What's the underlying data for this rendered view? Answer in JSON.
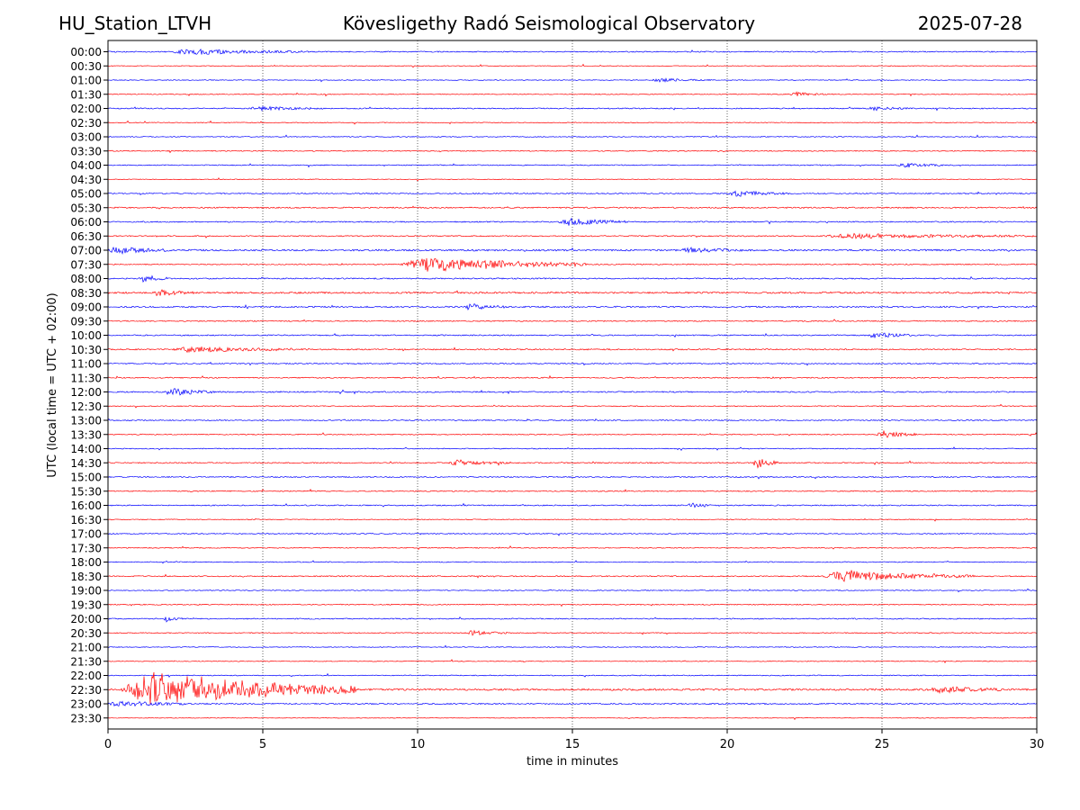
{
  "header": {
    "station": "HU_Station_LTVH",
    "observatory": "Kövesligethy Radó Seismological Observatory",
    "date": "2025-07-28"
  },
  "chart_data": {
    "type": "line",
    "xlabel": "time in minutes",
    "ylabel": "UTC (local time = UTC + 02:00)",
    "xlim": [
      0,
      30
    ],
    "x_ticks": [
      0,
      5,
      10,
      15,
      20,
      25,
      30
    ],
    "x_grid": "dotted vertical lines at 5, 10, 15, 20, 25",
    "trace_colors": [
      "#0000ff",
      "#ff0000"
    ],
    "rows": [
      "00:00",
      "00:30",
      "01:00",
      "01:30",
      "02:00",
      "02:30",
      "03:00",
      "03:30",
      "04:00",
      "04:30",
      "05:00",
      "05:30",
      "06:00",
      "06:30",
      "07:00",
      "07:30",
      "08:00",
      "08:30",
      "09:00",
      "09:30",
      "10:00",
      "10:30",
      "11:00",
      "11:30",
      "12:00",
      "12:30",
      "13:00",
      "13:30",
      "14:00",
      "14:30",
      "15:00",
      "15:30",
      "16:00",
      "16:30",
      "17:00",
      "17:30",
      "18:00",
      "18:30",
      "19:00",
      "19:30",
      "20:00",
      "20:30",
      "21:00",
      "21:30",
      "22:00",
      "22:30",
      "23:00",
      "23:30"
    ],
    "row_noise": [
      0.6,
      0.35,
      0.4,
      0.45,
      0.6,
      0.4,
      0.45,
      0.5,
      0.55,
      0.35,
      0.6,
      0.7,
      0.65,
      0.6,
      0.9,
      0.6,
      0.7,
      0.9,
      0.8,
      0.6,
      0.65,
      0.7,
      0.6,
      0.6,
      0.7,
      0.5,
      0.6,
      0.55,
      0.5,
      0.6,
      0.6,
      0.55,
      0.6,
      0.45,
      0.55,
      0.5,
      0.5,
      0.6,
      0.45,
      0.55,
      0.6,
      0.5,
      0.4,
      0.4,
      0.5,
      1.0,
      0.7,
      0.3
    ],
    "events": [
      {
        "row": "00:00",
        "start_min": 2.0,
        "end_min": 6.5,
        "amplitude": 3
      },
      {
        "row": "01:00",
        "start_min": 17.5,
        "end_min": 19.5,
        "amplitude": 2
      },
      {
        "row": "01:30",
        "start_min": 22.0,
        "end_min": 23.5,
        "amplitude": 2
      },
      {
        "row": "02:00",
        "start_min": 4.5,
        "end_min": 7.0,
        "amplitude": 2
      },
      {
        "row": "02:00",
        "start_min": 24.5,
        "end_min": 26.0,
        "amplitude": 2
      },
      {
        "row": "04:00",
        "start_min": 25.5,
        "end_min": 27.0,
        "amplitude": 2.5
      },
      {
        "row": "05:00",
        "start_min": 20.0,
        "end_min": 22.0,
        "amplitude": 3
      },
      {
        "row": "06:00",
        "start_min": 14.5,
        "end_min": 16.8,
        "amplitude": 4
      },
      {
        "row": "06:30",
        "start_min": 23.0,
        "end_min": 30.0,
        "amplitude": 2.5
      },
      {
        "row": "07:00",
        "start_min": 0.0,
        "end_min": 2.0,
        "amplitude": 4
      },
      {
        "row": "07:00",
        "start_min": 18.5,
        "end_min": 20.5,
        "amplitude": 2.5
      },
      {
        "row": "07:30",
        "start_min": 9.4,
        "end_min": 15.5,
        "amplitude": 9
      },
      {
        "row": "08:00",
        "start_min": 1.0,
        "end_min": 2.0,
        "amplitude": 4
      },
      {
        "row": "08:30",
        "start_min": 1.5,
        "end_min": 2.8,
        "amplitude": 3
      },
      {
        "row": "09:00",
        "start_min": 11.5,
        "end_min": 12.8,
        "amplitude": 3.5
      },
      {
        "row": "10:00",
        "start_min": 24.5,
        "end_min": 26.0,
        "amplitude": 3
      },
      {
        "row": "10:30",
        "start_min": 2.0,
        "end_min": 6.5,
        "amplitude": 3
      },
      {
        "row": "12:00",
        "start_min": 1.8,
        "end_min": 3.5,
        "amplitude": 4
      },
      {
        "row": "13:30",
        "start_min": 24.8,
        "end_min": 26.2,
        "amplitude": 4
      },
      {
        "row": "14:30",
        "start_min": 11.0,
        "end_min": 13.0,
        "amplitude": 3
      },
      {
        "row": "14:30",
        "start_min": 20.8,
        "end_min": 21.7,
        "amplitude": 6
      },
      {
        "row": "16:00",
        "start_min": 18.7,
        "end_min": 19.5,
        "amplitude": 2.5
      },
      {
        "row": "18:30",
        "start_min": 23.0,
        "end_min": 28.0,
        "amplitude": 6
      },
      {
        "row": "20:00",
        "start_min": 1.8,
        "end_min": 2.4,
        "amplitude": 3
      },
      {
        "row": "20:30",
        "start_min": 11.5,
        "end_min": 13.0,
        "amplitude": 2.5
      },
      {
        "row": "22:30",
        "start_min": 0.4,
        "end_min": 8.0,
        "amplitude": 22
      },
      {
        "row": "22:30",
        "start_min": 26.5,
        "end_min": 29.0,
        "amplitude": 3.5
      },
      {
        "row": "23:00",
        "start_min": 0.0,
        "end_min": 2.5,
        "amplitude": 3
      }
    ]
  }
}
